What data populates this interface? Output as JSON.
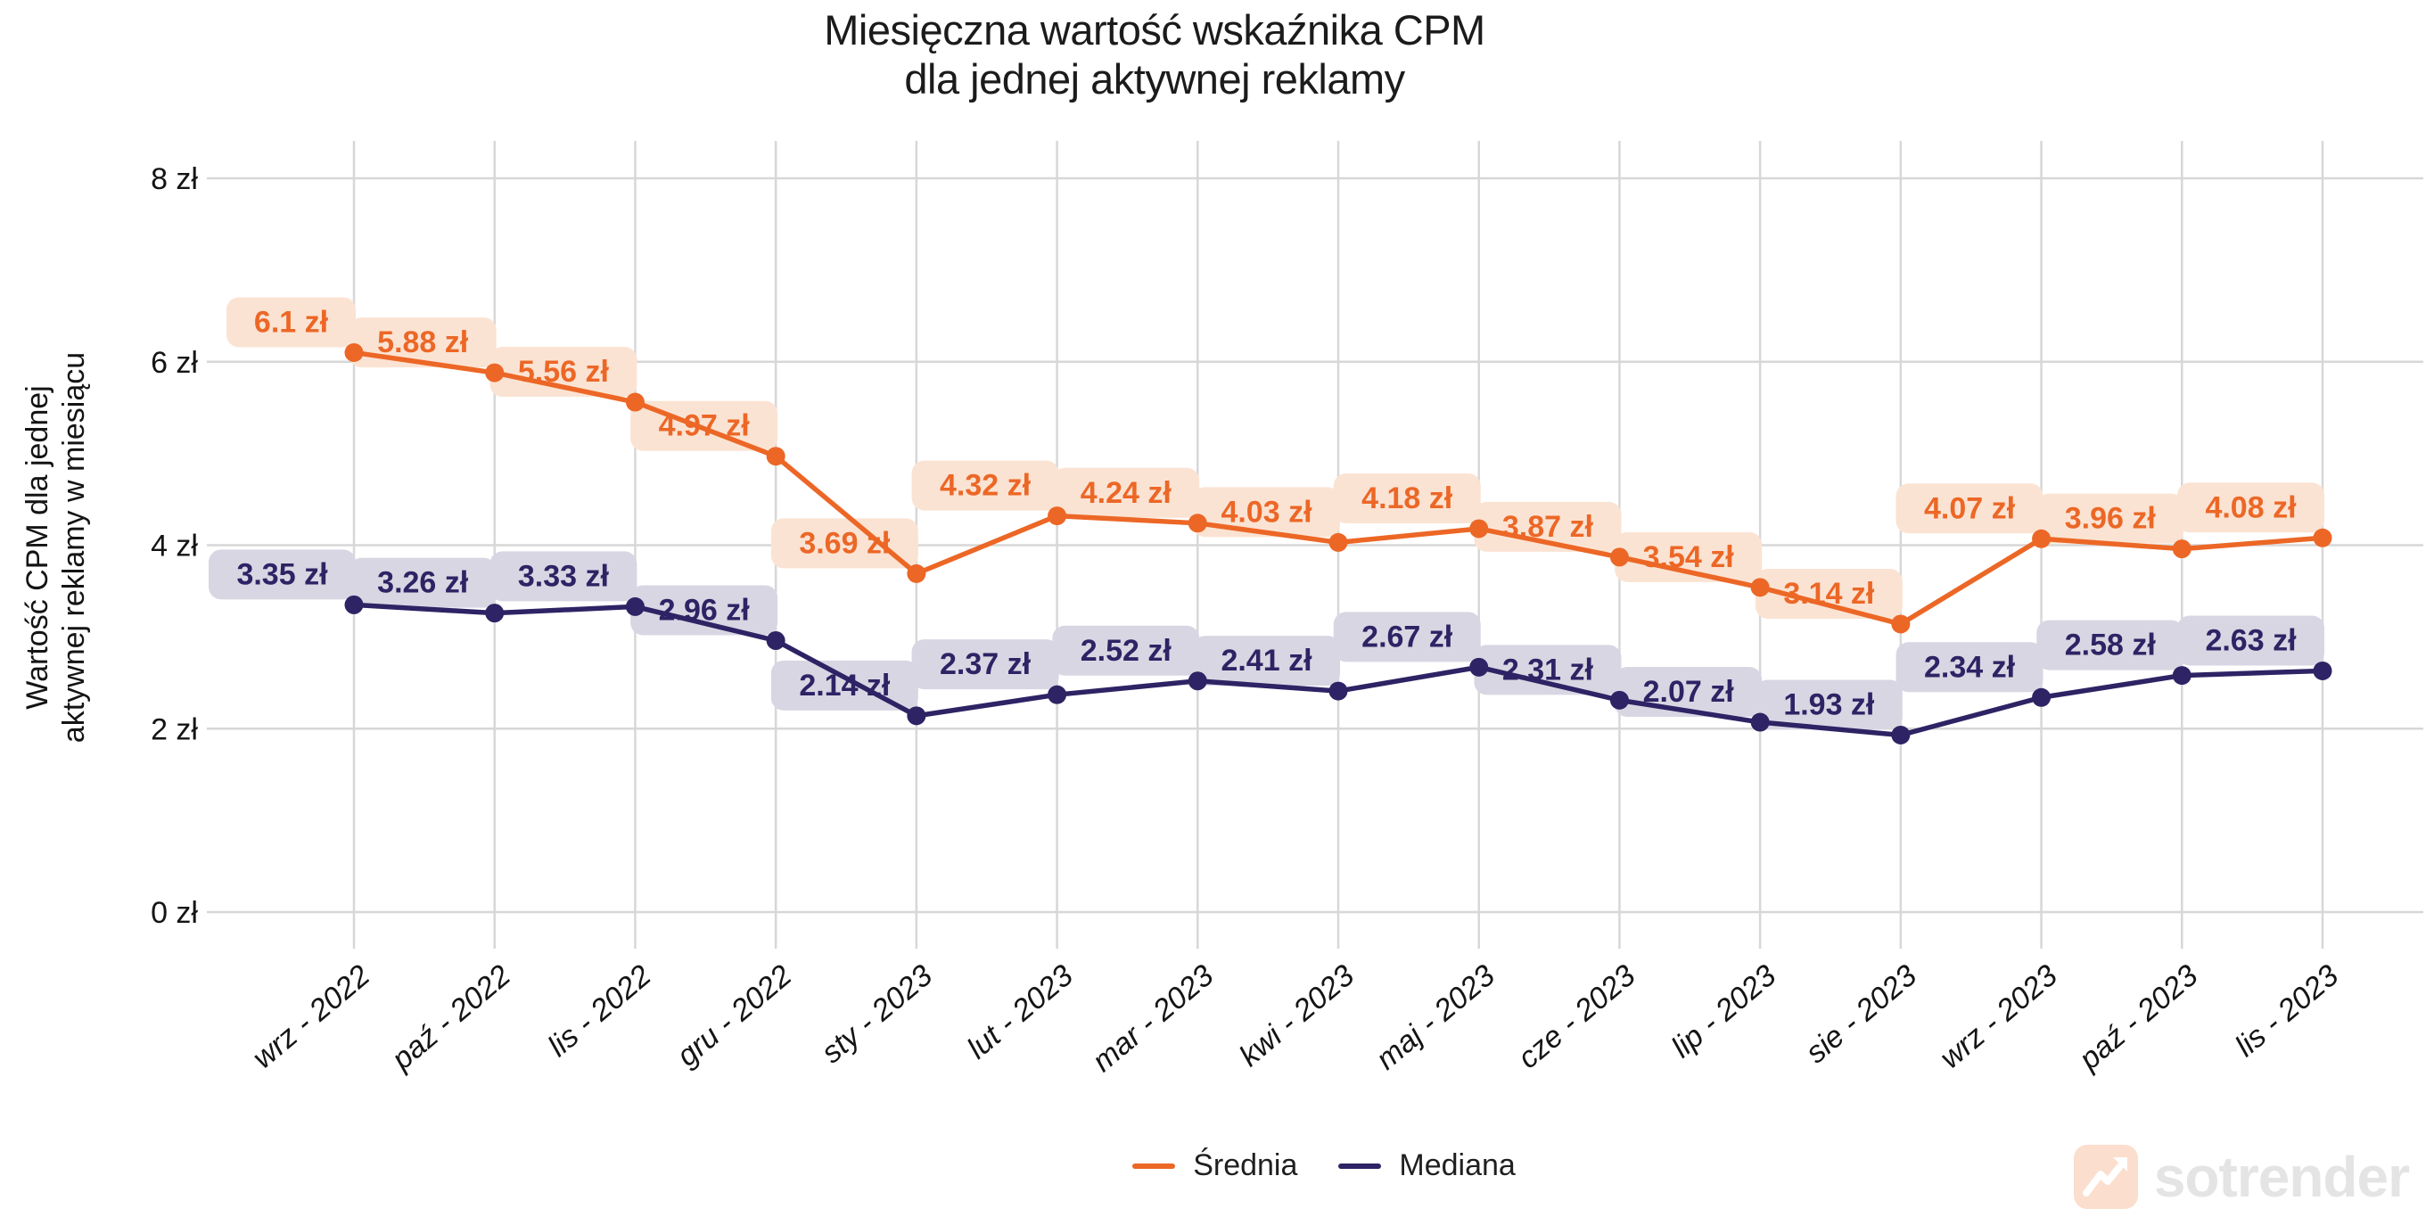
{
  "title": {
    "line1": "Miesięczna wartość wskaźnika CPM",
    "line2": "dla jednej aktywnej reklamy"
  },
  "y_axis": {
    "label_line1": "Wartość CPM dla jednej",
    "label_line2": "aktywnej reklamy w miesiącu"
  },
  "chart_data": {
    "type": "line",
    "title": "Miesięczna wartość wskaźnika CPM dla jednej aktywnej reklamy",
    "ylabel": "Wartość CPM dla jednej aktywnej reklamy w miesiącu",
    "xlabel": "",
    "ylim": [
      0,
      8
    ],
    "grid": true,
    "legend_position": "bottom",
    "y_ticks": [
      "0 zł",
      "2 zł",
      "4 zł",
      "6 zł",
      "8 zł"
    ],
    "y_tick_values": [
      0,
      2,
      4,
      6,
      8
    ],
    "categories": [
      "wrz - 2022",
      "paź - 2022",
      "lis - 2022",
      "gru - 2022",
      "sty - 2023",
      "lut - 2023",
      "mar - 2023",
      "kwi - 2023",
      "maj - 2023",
      "cze - 2023",
      "lip - 2023",
      "sie - 2023",
      "wrz - 2023",
      "paź - 2023",
      "lis - 2023"
    ],
    "series": [
      {
        "name": "Średnia",
        "color": "#ec6726",
        "label_bg": "#fbe3d3",
        "values": [
          6.1,
          5.88,
          5.56,
          4.97,
          3.69,
          4.32,
          4.24,
          4.03,
          4.18,
          3.87,
          3.54,
          3.14,
          4.07,
          3.96,
          4.08
        ],
        "point_labels": [
          "6.1 zł",
          "5.88 zł",
          "5.56 zł",
          "4.97 zł",
          "3.69 zł",
          "4.32 zł",
          "4.24 zł",
          "4.03 zł",
          "4.18 zł",
          "3.87 zł",
          "3.54 zł",
          "3.14 zł",
          "4.07 zł",
          "3.96 zł",
          "4.08 zł"
        ]
      },
      {
        "name": "Mediana",
        "color": "#2e2364",
        "label_bg": "#d9d6e3",
        "values": [
          3.35,
          3.26,
          3.33,
          2.96,
          2.14,
          2.37,
          2.52,
          2.41,
          2.67,
          2.31,
          2.07,
          1.93,
          2.34,
          2.58,
          2.63
        ],
        "point_labels": [
          "3.35 zł",
          "3.26 zł",
          "3.33 zł",
          "2.96 zł",
          "2.14 zł",
          "2.37 zł",
          "2.52 zł",
          "2.41 zł",
          "2.67 zł",
          "2.31 zł",
          "2.07 zł",
          "1.93 zł",
          "2.34 zł",
          "2.58 zł",
          "2.63 zł"
        ]
      }
    ]
  },
  "legend": {
    "items": [
      {
        "label": "Średnia",
        "color": "#ec6726"
      },
      {
        "label": "Mediana",
        "color": "#2e2364"
      }
    ]
  },
  "watermark": {
    "text": "sotrender",
    "icon": "trending-up-arrow-icon",
    "icon_bg": "#fbdecd"
  },
  "colors": {
    "gridline": "#d7d7d7",
    "axis_text": "#141414",
    "background": "#ffffff"
  }
}
